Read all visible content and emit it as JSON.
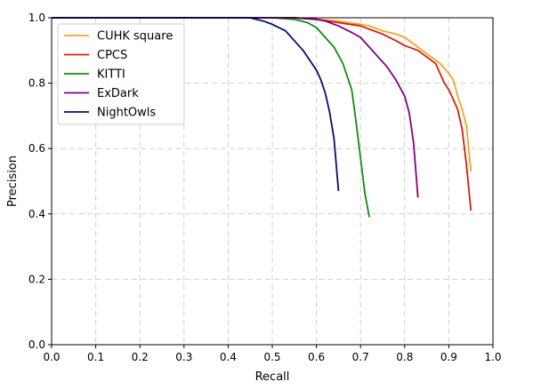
{
  "chart_data": {
    "type": "line",
    "title": "",
    "xlabel": "Recall",
    "ylabel": "Precision",
    "xlim": [
      0.0,
      1.0
    ],
    "ylim": [
      0.0,
      1.0
    ],
    "xticks": [
      "0.0",
      "0.1",
      "0.2",
      "0.3",
      "0.4",
      "0.5",
      "0.6",
      "0.7",
      "0.8",
      "0.9",
      "1.0"
    ],
    "yticks": [
      "0.0",
      "0.2",
      "0.4",
      "0.6",
      "0.8",
      "1.0"
    ],
    "grid": true,
    "legend_position": "top-left",
    "series": [
      {
        "name": "CUHK square",
        "color": "#f5a623",
        "x": [
          0.0,
          0.55,
          0.6,
          0.65,
          0.7,
          0.72,
          0.75,
          0.78,
          0.8,
          0.82,
          0.85,
          0.88,
          0.9,
          0.91,
          0.92,
          0.93,
          0.94,
          0.95
        ],
        "y": [
          1.0,
          1.0,
          0.995,
          0.99,
          0.98,
          0.975,
          0.96,
          0.95,
          0.94,
          0.92,
          0.89,
          0.86,
          0.83,
          0.81,
          0.76,
          0.72,
          0.67,
          0.53
        ]
      },
      {
        "name": "CPCS",
        "color": "#d62010",
        "x": [
          0.0,
          0.55,
          0.6,
          0.65,
          0.7,
          0.72,
          0.75,
          0.78,
          0.8,
          0.83,
          0.85,
          0.87,
          0.89,
          0.9,
          0.91,
          0.92,
          0.93,
          0.94,
          0.95
        ],
        "y": [
          1.0,
          1.0,
          0.995,
          0.985,
          0.975,
          0.965,
          0.95,
          0.93,
          0.915,
          0.9,
          0.88,
          0.86,
          0.8,
          0.78,
          0.75,
          0.72,
          0.66,
          0.55,
          0.41
        ]
      },
      {
        "name": "KITTI",
        "color": "#138a13",
        "x": [
          0.0,
          0.5,
          0.55,
          0.58,
          0.6,
          0.62,
          0.64,
          0.66,
          0.68,
          0.69,
          0.7,
          0.71,
          0.72
        ],
        "y": [
          1.0,
          1.0,
          0.995,
          0.985,
          0.97,
          0.94,
          0.91,
          0.86,
          0.78,
          0.68,
          0.57,
          0.46,
          0.39
        ]
      },
      {
        "name": "ExDark",
        "color": "#820082",
        "x": [
          0.0,
          0.55,
          0.6,
          0.62,
          0.65,
          0.68,
          0.7,
          0.72,
          0.74,
          0.76,
          0.78,
          0.8,
          0.81,
          0.82,
          0.83
        ],
        "y": [
          1.0,
          1.0,
          0.995,
          0.99,
          0.975,
          0.955,
          0.94,
          0.91,
          0.88,
          0.85,
          0.81,
          0.76,
          0.71,
          0.62,
          0.45
        ]
      },
      {
        "name": "NightOwls",
        "color": "#0a0a78",
        "x": [
          0.0,
          0.45,
          0.48,
          0.5,
          0.53,
          0.55,
          0.57,
          0.59,
          0.6,
          0.61,
          0.62,
          0.63,
          0.64,
          0.65
        ],
        "y": [
          1.0,
          1.0,
          0.99,
          0.98,
          0.96,
          0.93,
          0.9,
          0.86,
          0.84,
          0.81,
          0.77,
          0.71,
          0.63,
          0.47
        ]
      }
    ]
  }
}
